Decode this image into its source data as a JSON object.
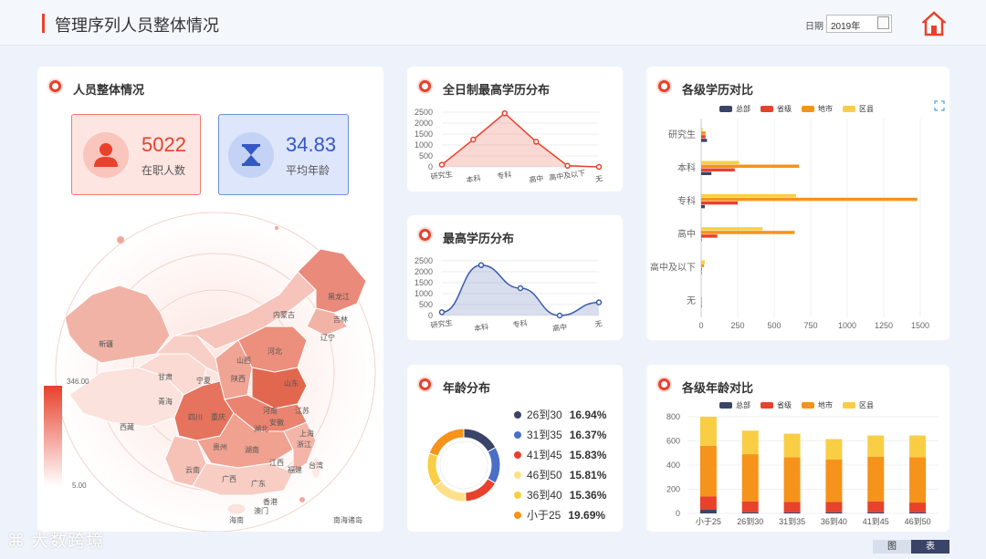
{
  "header": {
    "title": "管理序列人员整体情况",
    "date_label": "日期",
    "date_value": "2019年"
  },
  "overview": {
    "title": "人员整体情况",
    "kpi_staff": {
      "value": "5022",
      "label": "在职人数"
    },
    "kpi_age": {
      "value": "34.83",
      "label": "平均年龄"
    },
    "map": {
      "scale_max": "346.00",
      "scale_min": "5.00",
      "regions": [
        "新疆",
        "西藏",
        "青海",
        "甘肃",
        "内蒙古",
        "黑龙江",
        "吉林",
        "辽宁",
        "河北",
        "山西",
        "陕西",
        "宁夏",
        "四川",
        "重庆",
        "云南",
        "贵州",
        "广西",
        "广东",
        "湖南",
        "湖北",
        "河南",
        "山东",
        "江苏",
        "安徽",
        "浙江",
        "江西",
        "福建",
        "上海",
        "台湾",
        "香港",
        "澳门",
        "海南",
        "南海诸岛"
      ]
    }
  },
  "fulltime_edu": {
    "title": "全日制最高学历分布",
    "chart_data": {
      "type": "area",
      "categories": [
        "研究生",
        "本科",
        "专科",
        "高中",
        "高中及以下",
        "无"
      ],
      "values": [
        100,
        1250,
        2450,
        1150,
        50,
        0
      ],
      "yticks": [
        "0",
        "500",
        "1000",
        "1500",
        "2000",
        "2500"
      ],
      "ylim": [
        0,
        2500
      ]
    }
  },
  "highest_edu": {
    "title": "最高学历分布",
    "chart_data": {
      "type": "area",
      "categories": [
        "研究生",
        "本科",
        "专科",
        "高中",
        "无"
      ],
      "values": [
        150,
        2300,
        1250,
        0,
        600
      ],
      "yticks": [
        "0",
        "500",
        "1000",
        "1500",
        "2000",
        "2500"
      ],
      "ylim": [
        0,
        2500
      ]
    }
  },
  "age_dist": {
    "title": "年龄分布",
    "chart_data": {
      "type": "pie",
      "items": [
        {
          "label": "26到30",
          "pct": "16.94%",
          "value": 16.94,
          "color": "#3a4468"
        },
        {
          "label": "31到35",
          "pct": "16.37%",
          "value": 16.37,
          "color": "#4a6fc7"
        },
        {
          "label": "41到45",
          "pct": "15.83%",
          "value": 15.83,
          "color": "#e8412c"
        },
        {
          "label": "46到50",
          "pct": "15.81%",
          "value": 15.81,
          "color": "#ffe08a"
        },
        {
          "label": "36到40",
          "pct": "15.36%",
          "value": 15.36,
          "color": "#f9ce45"
        },
        {
          "label": "小于25",
          "pct": "19.69%",
          "value": 19.69,
          "color": "#f5931a"
        }
      ]
    }
  },
  "edu_compare": {
    "title": "各级学历对比",
    "chart_data": {
      "type": "bar",
      "orientation": "horizontal",
      "categories": [
        "研究生",
        "本科",
        "专科",
        "高中",
        "高中及以下",
        "无"
      ],
      "series": [
        {
          "name": "总部",
          "color": "#3a4468",
          "values": [
            40,
            70,
            25,
            0,
            0,
            0
          ]
        },
        {
          "name": "省级",
          "color": "#e8412c",
          "values": [
            30,
            230,
            250,
            110,
            5,
            3
          ]
        },
        {
          "name": "地市",
          "color": "#f5931a",
          "values": [
            30,
            670,
            1480,
            640,
            20,
            5
          ]
        },
        {
          "name": "区县",
          "color": "#f9ce45",
          "values": [
            10,
            260,
            650,
            420,
            25,
            3
          ]
        }
      ],
      "xticks": [
        "0",
        "250",
        "500",
        "750",
        "1000",
        "1250",
        "1500"
      ],
      "xlim": [
        0,
        1500
      ]
    }
  },
  "age_compare": {
    "title": "各级年龄对比",
    "chart_data": {
      "type": "bar",
      "stacked": true,
      "categories": [
        "小于25",
        "26到30",
        "31到35",
        "36到40",
        "41到45",
        "46到50"
      ],
      "series": [
        {
          "name": "总部",
          "color": "#3a4468",
          "values": [
            30,
            10,
            10,
            10,
            10,
            10
          ]
        },
        {
          "name": "省级",
          "color": "#e8412c",
          "values": [
            110,
            90,
            85,
            85,
            90,
            80
          ]
        },
        {
          "name": "地市",
          "color": "#f5931a",
          "values": [
            420,
            390,
            370,
            350,
            370,
            375
          ]
        },
        {
          "name": "区县",
          "color": "#f9ce45",
          "values": [
            240,
            195,
            195,
            170,
            175,
            180
          ]
        }
      ],
      "yticks": [
        "0",
        "200",
        "400",
        "600",
        "800"
      ],
      "ylim": [
        0,
        800
      ]
    }
  },
  "footer": {
    "brand": "大数跨境",
    "tab_chart": "图",
    "tab_table": "表"
  }
}
